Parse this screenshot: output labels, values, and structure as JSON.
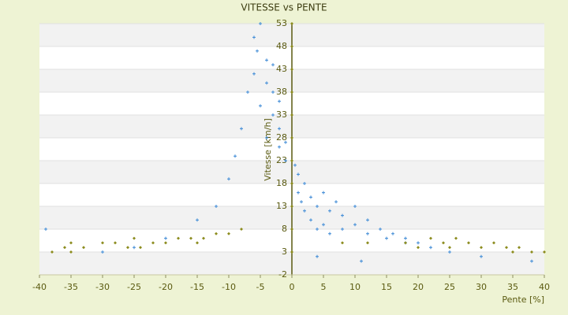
{
  "chart_data": {
    "type": "scatter",
    "title": "VITESSE vs PENTE",
    "xlabel": "Pente [%]",
    "ylabel": "Vitesse [km/h]",
    "xlim": [
      -40,
      40
    ],
    "xticks": [
      -40,
      -35,
      -30,
      -25,
      -20,
      -15,
      -10,
      -5,
      0,
      5,
      10,
      15,
      20,
      25,
      30,
      35,
      40
    ],
    "ylim": [
      -2,
      53
    ],
    "yticks": [
      -2,
      3,
      8,
      13,
      18,
      23,
      28,
      33,
      38,
      43,
      48,
      53
    ],
    "grid": true,
    "series": [
      {
        "color": "#3d8ad6",
        "marker": "plus",
        "x": [
          -6,
          -5,
          -5.5,
          -4,
          -4,
          -3,
          -3,
          -2,
          -2,
          -1,
          -1,
          -6,
          -7,
          -8,
          -9,
          -10,
          -12,
          -15,
          -20,
          -25,
          -30,
          -39,
          -5,
          -3,
          -2,
          -4,
          0.5,
          1,
          1,
          1.5,
          2,
          2,
          3,
          3,
          4,
          4,
          5,
          5,
          6,
          6,
          7,
          8,
          8,
          10,
          10,
          12,
          12,
          14,
          15,
          16,
          18,
          18,
          20,
          22,
          25,
          30,
          38,
          4,
          11
        ],
        "values": [
          50,
          53,
          47,
          45,
          40,
          38,
          33,
          30,
          26,
          27,
          23,
          42,
          38,
          30,
          24,
          19,
          13,
          10,
          6,
          4,
          3,
          8,
          35,
          44,
          36,
          28,
          22,
          20,
          16,
          14,
          18,
          12,
          10,
          15,
          8,
          13,
          9,
          16,
          7,
          12,
          14,
          8,
          11,
          9,
          13,
          7,
          10,
          8,
          6,
          7,
          5,
          6,
          5,
          4,
          3,
          2,
          1,
          2,
          1
        ]
      },
      {
        "color": "#8c8c1e",
        "marker": "diamond",
        "x": [
          -38,
          -36,
          -35,
          -33,
          -30,
          -28,
          -25,
          -24,
          -22,
          -20,
          -18,
          -16,
          -14,
          -12,
          -10,
          -8,
          -35,
          -26,
          -15,
          0,
          0,
          0,
          0,
          0,
          0,
          0,
          0,
          0,
          0,
          0,
          8,
          12,
          18,
          20,
          22,
          24,
          26,
          28,
          30,
          32,
          34,
          36,
          38,
          40,
          25,
          35
        ],
        "values": [
          3,
          4,
          5,
          4,
          5,
          5,
          6,
          4,
          5,
          5,
          6,
          6,
          6,
          7,
          7,
          8,
          3,
          4,
          5,
          3,
          8,
          13,
          18,
          23,
          28,
          33,
          38,
          43,
          48,
          53,
          5,
          5,
          5,
          4,
          6,
          5,
          6,
          5,
          4,
          5,
          4,
          4,
          3,
          3,
          4,
          3
        ]
      }
    ]
  }
}
